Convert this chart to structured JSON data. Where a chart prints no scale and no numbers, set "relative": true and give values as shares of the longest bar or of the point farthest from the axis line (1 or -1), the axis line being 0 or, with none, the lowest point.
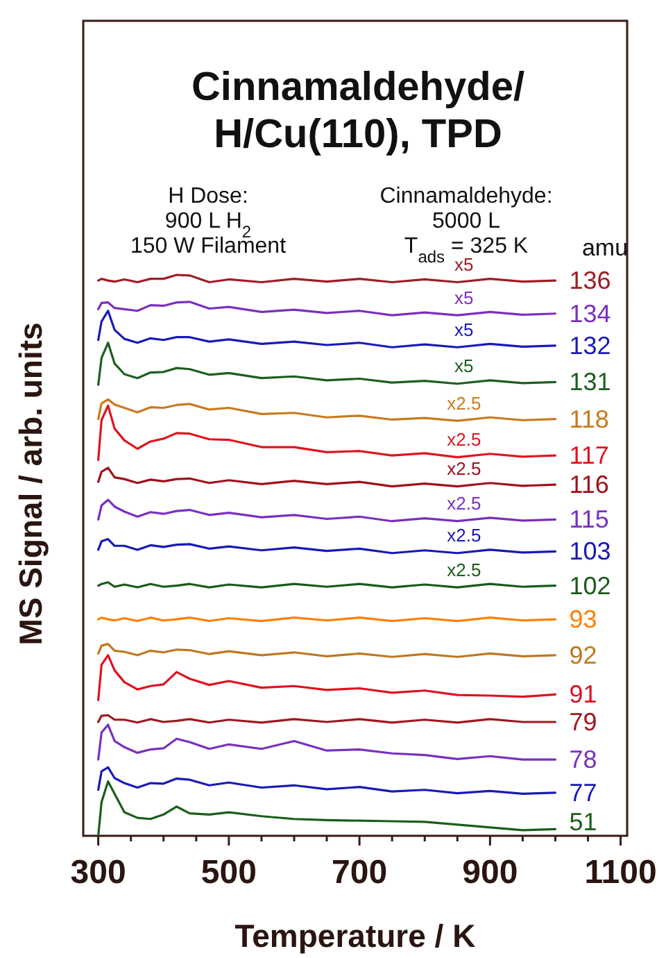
{
  "chart_data": {
    "type": "line",
    "relative": true,
    "title": "Cinnamaldehyde/\nH/Cu(110), TPD",
    "xlabel": "Temperature / K",
    "ylabel": "MS Signal / arb. units",
    "legend_title": "amu",
    "xlim": [
      277,
      1110
    ],
    "xticks": [
      300,
      {
        "value": 350,
        "label": null
      },
      {
        "value": 400,
        "label": null
      },
      {
        "value": 450,
        "label": null
      },
      500,
      {
        "value": 550,
        "label": null
      },
      {
        "value": 600,
        "label": null
      },
      {
        "value": 650,
        "label": null
      },
      700,
      {
        "value": 750,
        "label": null
      },
      {
        "value": 800,
        "label": null
      },
      {
        "value": 850,
        "label": null
      },
      900,
      {
        "value": 950,
        "label": null
      },
      {
        "value": 1000,
        "label": null
      },
      {
        "value": 1050,
        "label": null
      },
      1100
    ],
    "x": [
      300,
      305,
      315,
      325,
      340,
      360,
      380,
      400,
      420,
      440,
      470,
      500,
      550,
      600,
      650,
      700,
      750,
      800,
      850,
      900,
      950,
      1000
    ],
    "series": [
      {
        "name": "136",
        "color": "#a01c24",
        "values": [
          0.99,
          0.993,
          0.99,
          0.988,
          0.992,
          0.987,
          0.993,
          0.993,
          1.0,
          0.999,
          0.987,
          0.992,
          0.987,
          0.993,
          0.988,
          0.993,
          0.987,
          0.992,
          0.987,
          0.993,
          0.988,
          0.99
        ]
      },
      {
        "name": "134",
        "color": "#7b2fbf",
        "values": [
          0.939,
          0.95,
          0.951,
          0.941,
          0.939,
          0.936,
          0.946,
          0.945,
          0.951,
          0.952,
          0.94,
          0.943,
          0.934,
          0.938,
          0.932,
          0.936,
          0.928,
          0.933,
          0.928,
          0.934,
          0.929,
          0.931
        ]
      },
      {
        "name": "132",
        "color": "#1a1ab8",
        "values": [
          0.884,
          0.917,
          0.936,
          0.902,
          0.886,
          0.879,
          0.887,
          0.884,
          0.889,
          0.889,
          0.881,
          0.885,
          0.877,
          0.881,
          0.875,
          0.879,
          0.871,
          0.876,
          0.871,
          0.877,
          0.872,
          0.874
        ]
      },
      {
        "name": "131",
        "color": "#1e5e1e",
        "values": [
          0.804,
          0.852,
          0.879,
          0.842,
          0.823,
          0.816,
          0.826,
          0.827,
          0.834,
          0.832,
          0.822,
          0.825,
          0.816,
          0.819,
          0.812,
          0.815,
          0.808,
          0.811,
          0.806,
          0.812,
          0.807,
          0.809
        ]
      },
      {
        "name": "118",
        "color": "#c97a1e",
        "values": [
          0.743,
          0.771,
          0.778,
          0.769,
          0.763,
          0.755,
          0.764,
          0.763,
          0.768,
          0.77,
          0.76,
          0.763,
          0.752,
          0.754,
          0.746,
          0.749,
          0.742,
          0.745,
          0.74,
          0.746,
          0.741,
          0.743
        ]
      },
      {
        "name": "117",
        "color": "#e0141e",
        "values": [
          0.67,
          0.741,
          0.767,
          0.726,
          0.705,
          0.69,
          0.703,
          0.708,
          0.718,
          0.717,
          0.707,
          0.706,
          0.693,
          0.693,
          0.684,
          0.686,
          0.678,
          0.682,
          0.675,
          0.681,
          0.676,
          0.678
        ]
      },
      {
        "name": "116",
        "color": "#a0101c",
        "values": [
          0.631,
          0.649,
          0.656,
          0.639,
          0.636,
          0.629,
          0.635,
          0.632,
          0.636,
          0.637,
          0.629,
          0.634,
          0.627,
          0.633,
          0.627,
          0.631,
          0.623,
          0.628,
          0.623,
          0.629,
          0.624,
          0.626
        ]
      },
      {
        "name": "115",
        "color": "#7a2fc0",
        "values": [
          0.564,
          0.589,
          0.599,
          0.587,
          0.578,
          0.569,
          0.577,
          0.574,
          0.579,
          0.581,
          0.572,
          0.576,
          0.568,
          0.572,
          0.565,
          0.569,
          0.561,
          0.566,
          0.561,
          0.567,
          0.562,
          0.564
        ]
      },
      {
        "name": "103",
        "color": "#1818b8",
        "values": [
          0.51,
          0.525,
          0.529,
          0.517,
          0.517,
          0.51,
          0.518,
          0.515,
          0.519,
          0.52,
          0.512,
          0.516,
          0.509,
          0.514,
          0.508,
          0.512,
          0.504,
          0.509,
          0.504,
          0.51,
          0.505,
          0.507
        ]
      },
      {
        "name": "102",
        "color": "#1a5a1a",
        "values": [
          0.446,
          0.449,
          0.452,
          0.444,
          0.448,
          0.443,
          0.449,
          0.444,
          0.446,
          0.449,
          0.443,
          0.448,
          0.443,
          0.449,
          0.444,
          0.449,
          0.443,
          0.448,
          0.443,
          0.449,
          0.444,
          0.446
        ]
      },
      {
        "name": "93",
        "color": "#ff8000",
        "values": [
          0.386,
          0.389,
          0.386,
          0.384,
          0.388,
          0.383,
          0.389,
          0.384,
          0.386,
          0.389,
          0.383,
          0.388,
          0.383,
          0.389,
          0.384,
          0.389,
          0.383,
          0.388,
          0.383,
          0.389,
          0.384,
          0.386
        ]
      },
      {
        "name": "92",
        "color": "#c07820",
        "values": [
          0.325,
          0.339,
          0.342,
          0.33,
          0.328,
          0.322,
          0.33,
          0.327,
          0.332,
          0.331,
          0.324,
          0.329,
          0.322,
          0.327,
          0.32,
          0.325,
          0.319,
          0.324,
          0.319,
          0.325,
          0.32,
          0.322
        ]
      },
      {
        "name": "91",
        "color": "#e01020",
        "values": [
          0.242,
          0.305,
          0.322,
          0.295,
          0.274,
          0.261,
          0.267,
          0.27,
          0.292,
          0.28,
          0.269,
          0.276,
          0.264,
          0.267,
          0.26,
          0.263,
          0.255,
          0.259,
          0.251,
          0.25,
          0.248,
          0.252
        ]
      },
      {
        "name": "79",
        "color": "#a01820",
        "values": [
          0.203,
          0.214,
          0.215,
          0.207,
          0.207,
          0.202,
          0.208,
          0.203,
          0.205,
          0.208,
          0.202,
          0.207,
          0.202,
          0.208,
          0.203,
          0.208,
          0.202,
          0.207,
          0.202,
          0.208,
          0.203,
          0.203
        ]
      },
      {
        "name": "78",
        "color": "#7a2fbf",
        "values": [
          0.136,
          0.184,
          0.198,
          0.169,
          0.158,
          0.148,
          0.154,
          0.156,
          0.173,
          0.167,
          0.155,
          0.163,
          0.155,
          0.169,
          0.152,
          0.154,
          0.147,
          0.144,
          0.137,
          0.142,
          0.136,
          0.136
        ]
      },
      {
        "name": "77",
        "color": "#1a1ab8",
        "values": [
          0.082,
          0.115,
          0.122,
          0.103,
          0.094,
          0.086,
          0.094,
          0.093,
          0.102,
          0.1,
          0.09,
          0.095,
          0.086,
          0.09,
          0.083,
          0.087,
          0.079,
          0.082,
          0.076,
          0.08,
          0.075,
          0.077
        ]
      },
      {
        "name": "51",
        "color": "#1a5e1a",
        "values": [
          0.0,
          0.06,
          0.097,
          0.075,
          0.042,
          0.032,
          0.03,
          0.038,
          0.052,
          0.04,
          0.038,
          0.042,
          0.035,
          0.03,
          0.028,
          0.027,
          0.026,
          0.025,
          0.02,
          0.015,
          0.01,
          0.012
        ]
      }
    ],
    "annotations": [
      "H Dose:\n900 L H$_{2}$\n150 W Filament",
      "Cinnamaldehyde:\n5000 L\nT$_{ads}$ = 325 K",
      "x5",
      "x5",
      "x5",
      "x5",
      "x2.5",
      "x2.5",
      "x2.5",
      "x2.5",
      "x2.5",
      "x2.5"
    ]
  }
}
